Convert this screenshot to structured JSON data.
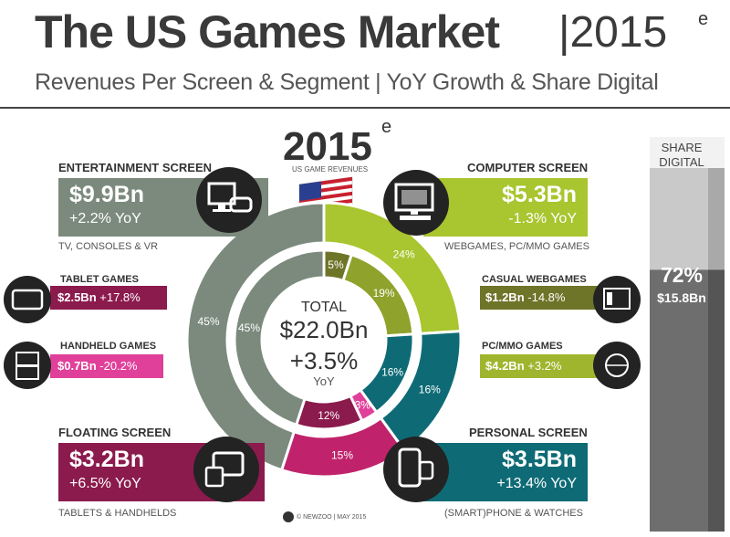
{
  "header": {
    "title": "The US Games Market",
    "divider": "|",
    "year": "2015",
    "year_sup": "e",
    "subtitle": "Revenues Per Screen & Segment | YoY Growth & Share Digital"
  },
  "center": {
    "year": "2015",
    "year_sup": "e",
    "caption": "US GAME REVENUES",
    "total_label": "TOTAL",
    "total_value": "$22.0Bn",
    "growth": "+3.5%",
    "growth_label": "YoY"
  },
  "segments": {
    "entertainment": {
      "title": "ENTERTAINMENT SCREEN",
      "value": "$9.9Bn",
      "yoy": "+2.2% YoY",
      "sub": "TV, CONSOLES & VR",
      "color": "#7b8a7d"
    },
    "computer": {
      "title": "COMPUTER SCREEN",
      "value": "$5.3Bn",
      "yoy": "-1.3% YoY",
      "sub": "WEBGAMES, PC/MMO GAMES",
      "color": "#a9c52f"
    },
    "floating": {
      "title": "FLOATING SCREEN",
      "value": "$3.2Bn",
      "yoy": "+6.5% YoY",
      "sub": "TABLETS & HANDHELDS",
      "color": "#8b1a4d"
    },
    "personal": {
      "title": "PERSONAL SCREEN",
      "value": "$3.5Bn",
      "yoy": "+13.4% YoY",
      "sub": "(SMART)PHONE & WATCHES",
      "color": "#0e6b76"
    }
  },
  "sub_segments": {
    "tablet": {
      "title": "TABLET GAMES",
      "value": "$2.5Bn",
      "yoy": "+17.8%",
      "color": "#8b1a4d"
    },
    "handheld": {
      "title": "HANDHELD GAMES",
      "value": "$0.7Bn",
      "yoy": "-20.2%",
      "color": "#e0409a"
    },
    "casual": {
      "title": "CASUAL WEBGAMES",
      "value": "$1.2Bn",
      "yoy": "-14.8%",
      "color": "#6e7428"
    },
    "pcmmo": {
      "title": "PC/MMO GAMES",
      "value": "$4.2Bn",
      "yoy": "+3.2%",
      "color": "#9fb52d"
    }
  },
  "share_digital": {
    "title_line1": "SHARE",
    "title_line2": "DIGITAL",
    "percent": "72%",
    "value": "$15.8Bn",
    "share": 0.72
  },
  "footer": "© NEWZOO | MAY 2015",
  "chart_data": {
    "type": "pie",
    "title": "The US Games Market 2015e",
    "total": 22.0,
    "outer_ring": [
      {
        "name": "Computer Screen",
        "value": 24,
        "color": "#a9c52f"
      },
      {
        "name": "Personal Screen",
        "value": 16,
        "color": "#0e6b76"
      },
      {
        "name": "Floating Screen",
        "value": 15,
        "color": "#c0236b"
      },
      {
        "name": "Entertainment Screen",
        "value": 45,
        "color": "#7b8a7d"
      }
    ],
    "inner_ring": [
      {
        "name": "Casual Webgames",
        "value": 5,
        "color": "#6e7428"
      },
      {
        "name": "PC/MMO Games",
        "value": 19,
        "color": "#8fa22c"
      },
      {
        "name": "Personal Screen",
        "value": 16,
        "color": "#0e6b76"
      },
      {
        "name": "Handheld Games",
        "value": 3,
        "color": "#e0409a"
      },
      {
        "name": "Tablet Games",
        "value": 12,
        "color": "#8b1a4d"
      },
      {
        "name": "Entertainment Screen",
        "value": 45,
        "color": "#7b8a7d"
      }
    ],
    "outer_labels": [
      "24%",
      "16%",
      "15%",
      "45%"
    ],
    "inner_labels": [
      "5%",
      "19%",
      "16%",
      "3%",
      "12%",
      "45%"
    ]
  }
}
